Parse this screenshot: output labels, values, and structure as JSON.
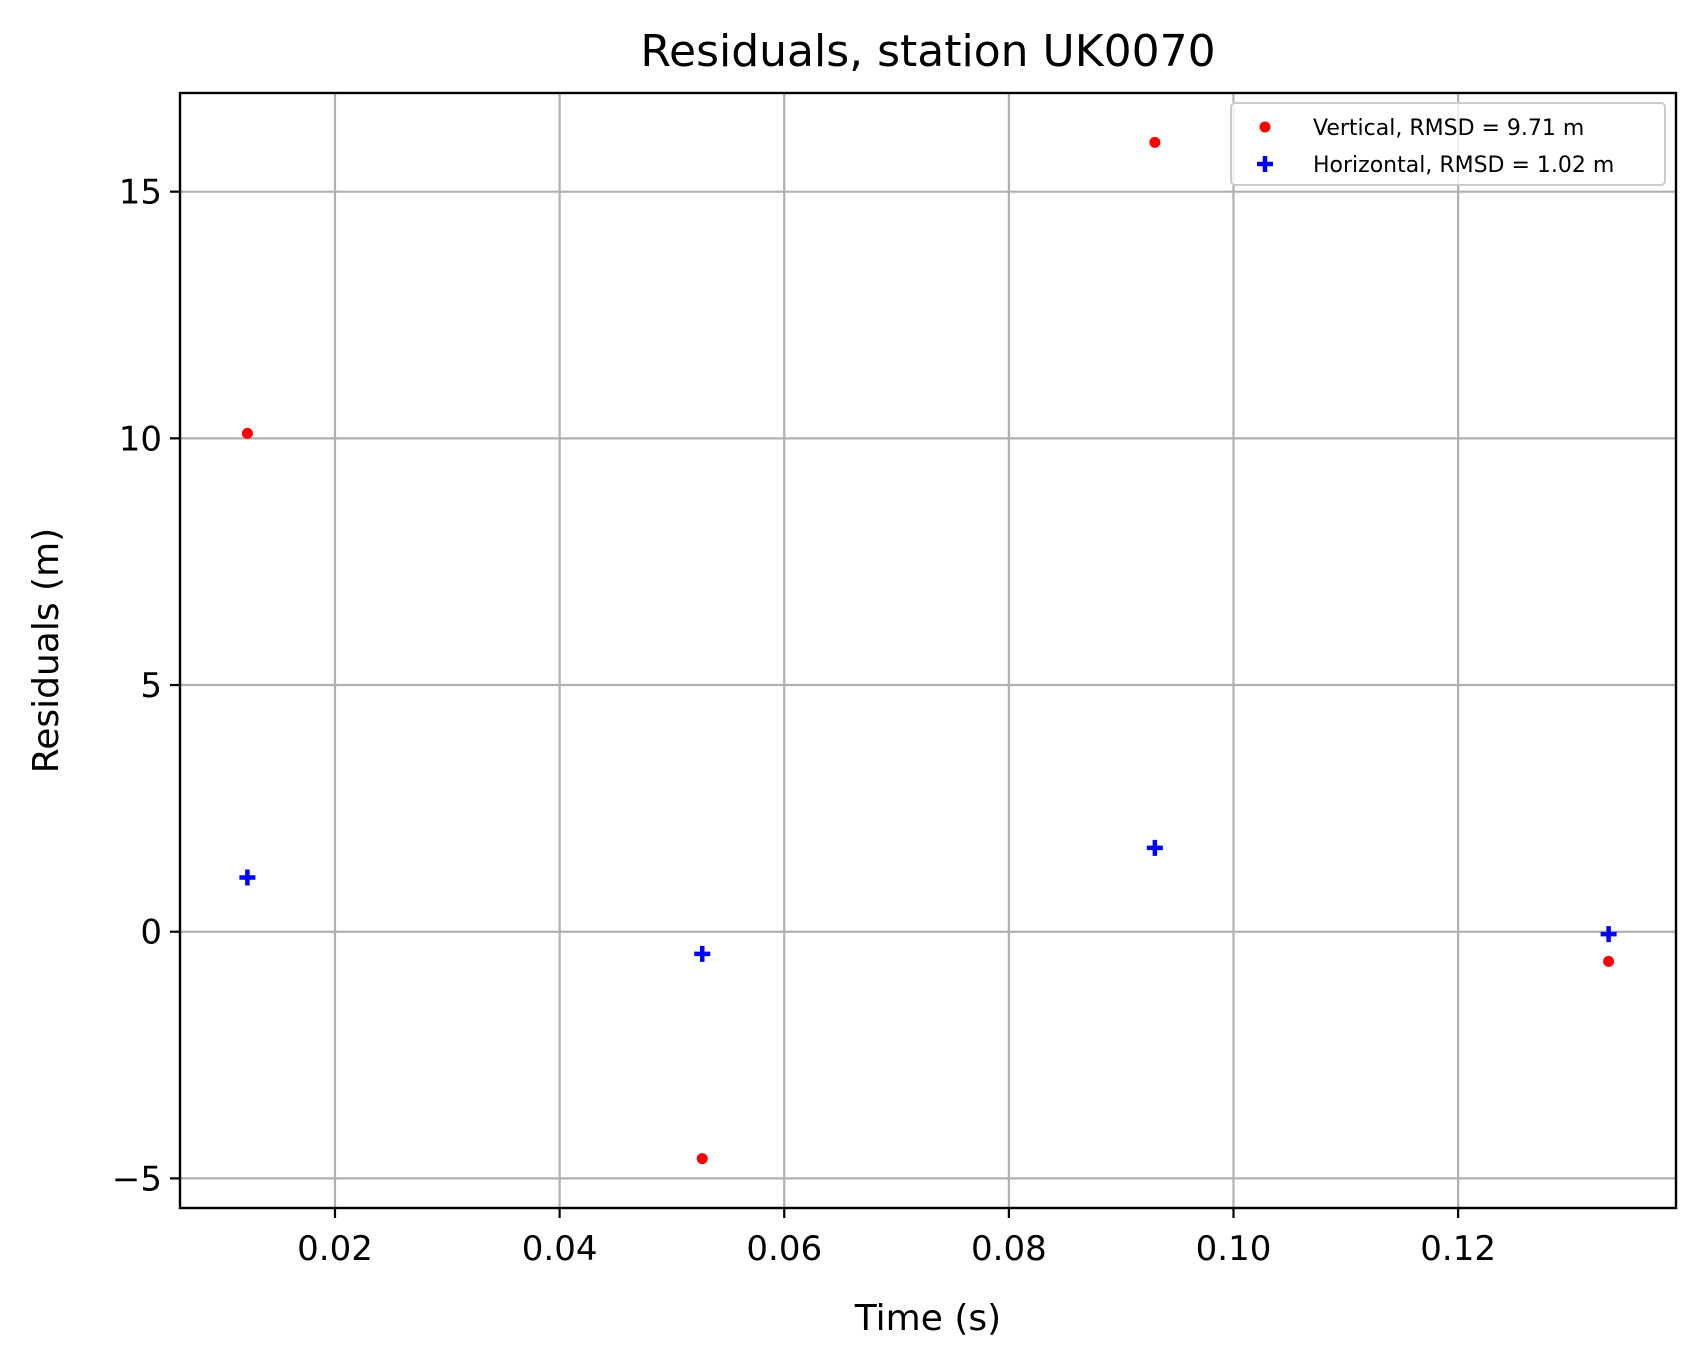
{
  "chart_data": {
    "type": "scatter",
    "title": "Residuals, station UK0070",
    "xlabel": "Time (s)",
    "ylabel": "Residuals (m)",
    "xlim": [
      0.0062,
      0.1394
    ],
    "ylim": [
      -5.6,
      17.0
    ],
    "xticks": [
      0.02,
      0.04,
      0.06,
      0.08,
      0.1,
      0.12
    ],
    "xtick_labels": [
      "0.02",
      "0.04",
      "0.06",
      "0.08",
      "0.10",
      "0.12"
    ],
    "yticks": [
      -5,
      0,
      5,
      10,
      15
    ],
    "ytick_labels": [
      "−5",
      "0",
      "5",
      "10",
      "15"
    ],
    "grid": true,
    "legend_position": "top-right",
    "series": [
      {
        "name": "Vertical, RMSD = 9.71 m",
        "marker": "dot",
        "color": "#ff0000",
        "x": [
          0.0122,
          0.0527,
          0.093,
          0.1334
        ],
        "y": [
          10.1,
          -4.6,
          16.0,
          -0.6
        ]
      },
      {
        "name": "Horizontal, RMSD = 1.02 m",
        "marker": "plus",
        "color": "#0000ff",
        "x": [
          0.0122,
          0.0527,
          0.093,
          0.1334
        ],
        "y": [
          1.1,
          -0.45,
          1.7,
          -0.05
        ]
      }
    ]
  }
}
